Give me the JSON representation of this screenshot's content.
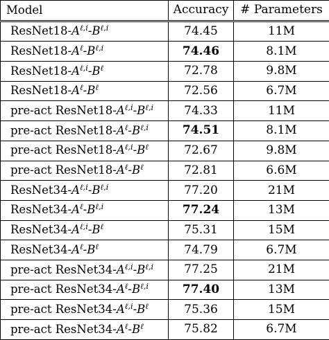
{
  "headers": {
    "model": "Model",
    "accuracy": "Accuracy",
    "params": "# Parameters"
  },
  "rows": [
    {
      "prefix": "ResNet18-",
      "a": "A",
      "a_sup": "ℓ,i",
      "b": "B",
      "b_sup": "ℓ,i",
      "acc": "74.45",
      "params": "11M",
      "bold": false
    },
    {
      "prefix": "ResNet18-",
      "a": "A",
      "a_sup": "ℓ",
      "b": "B",
      "b_sup": "ℓ,i",
      "acc": "74.46",
      "params": "8.1M",
      "bold": true
    },
    {
      "prefix": "ResNet18-",
      "a": "A",
      "a_sup": "ℓ,i",
      "b": "B",
      "b_sup": "ℓ",
      "acc": "72.78",
      "params": "9.8M",
      "bold": false
    },
    {
      "prefix": "ResNet18-",
      "a": "A",
      "a_sup": "ℓ",
      "b": "B",
      "b_sup": "ℓ",
      "acc": "72.56",
      "params": "6.7M",
      "bold": false
    },
    {
      "prefix": "pre-act ResNet18-",
      "a": "A",
      "a_sup": "ℓ,i",
      "b": "B",
      "b_sup": "ℓ,i",
      "acc": "74.33",
      "params": "11M",
      "bold": false
    },
    {
      "prefix": "pre-act ResNet18-",
      "a": "A",
      "a_sup": "ℓ",
      "b": "B",
      "b_sup": "ℓ,i",
      "acc": "74.51",
      "params": "8.1M",
      "bold": true
    },
    {
      "prefix": "pre-act ResNet18-",
      "a": "A",
      "a_sup": "ℓ,i",
      "b": "B",
      "b_sup": "ℓ",
      "acc": "72.67",
      "params": "9.8M",
      "bold": false
    },
    {
      "prefix": "pre-act ResNet18-",
      "a": "A",
      "a_sup": "ℓ",
      "b": "B",
      "b_sup": "ℓ",
      "acc": "72.81",
      "params": "6.6M",
      "bold": false
    },
    {
      "prefix": "ResNet34-",
      "a": "A",
      "a_sup": "ℓ,i",
      "b": "B",
      "b_sup": "ℓ,i",
      "acc": "77.20",
      "params": "21M",
      "bold": false
    },
    {
      "prefix": "ResNet34-",
      "a": "A",
      "a_sup": "ℓ",
      "b": "B",
      "b_sup": "ℓ,i",
      "acc": "77.24",
      "params": "13M",
      "bold": true
    },
    {
      "prefix": "ResNet34-",
      "a": "A",
      "a_sup": "ℓ,i",
      "b": "B",
      "b_sup": "ℓ",
      "acc": "75.31",
      "params": "15M",
      "bold": false
    },
    {
      "prefix": "ResNet34-",
      "a": "A",
      "a_sup": "ℓ",
      "b": "B",
      "b_sup": "ℓ",
      "acc": "74.79",
      "params": "6.7M",
      "bold": false
    },
    {
      "prefix": "pre-act ResNet34-",
      "a": "A",
      "a_sup": "ℓ,i",
      "b": "B",
      "b_sup": "ℓ,i",
      "acc": "77.25",
      "params": "21M",
      "bold": false
    },
    {
      "prefix": "pre-act ResNet34-",
      "a": "A",
      "a_sup": "ℓ",
      "b": "B",
      "b_sup": "ℓ,i",
      "acc": "77.40",
      "params": "13M",
      "bold": true
    },
    {
      "prefix": "pre-act ResNet34-",
      "a": "A",
      "a_sup": "ℓ,i",
      "b": "B",
      "b_sup": "ℓ",
      "acc": "75.36",
      "params": "15M",
      "bold": false
    },
    {
      "prefix": "pre-act ResNet34-",
      "a": "A",
      "a_sup": "ℓ",
      "b": "B",
      "b_sup": "ℓ",
      "acc": "75.82",
      "params": "6.7M",
      "bold": false
    }
  ]
}
